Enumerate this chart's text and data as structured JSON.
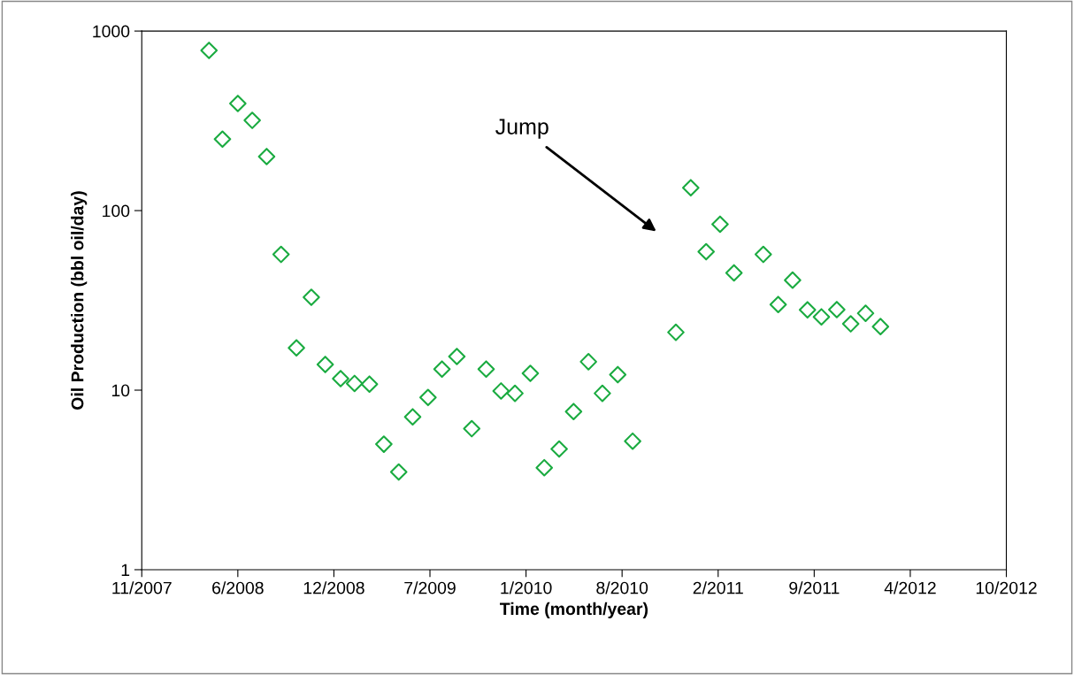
{
  "chart_data": {
    "type": "scatter",
    "xlabel": "Time (month/year)",
    "ylabel": "Oil Production (bbl oil/day)",
    "x": [
      "2008-04-03",
      "2008-05-01",
      "2008-06-02",
      "2008-07-02",
      "2008-08-01",
      "2008-08-31",
      "2008-10-02",
      "2008-11-02",
      "2008-12-01",
      "2009-01-02",
      "2009-01-31",
      "2009-03-03",
      "2009-04-02",
      "2009-05-03",
      "2009-06-01",
      "2009-07-03",
      "2009-08-01",
      "2009-09-01",
      "2009-10-02",
      "2009-11-01",
      "2009-12-02",
      "2009-12-31",
      "2010-02-01",
      "2010-03-02",
      "2010-04-02",
      "2010-05-02",
      "2010-06-02",
      "2010-07-01",
      "2010-08-02",
      "2010-09-02",
      "2010-12-01",
      "2011-01-01",
      "2011-02-02",
      "2011-03-03",
      "2011-04-01",
      "2011-06-01",
      "2011-07-02",
      "2011-08-01",
      "2011-09-01",
      "2011-09-30",
      "2011-11-01",
      "2011-11-30",
      "2011-12-31",
      "2012-01-31"
    ],
    "series": [
      {
        "color": "#1aab40",
        "values": [
          780,
          250,
          395,
          318,
          200,
          57,
          17.2,
          32.9,
          13.9,
          11.6,
          10.9,
          10.8,
          5.0,
          3.5,
          7.1,
          9.1,
          13.1,
          15.4,
          6.1,
          13.1,
          9.9,
          9.6,
          12.4,
          3.7,
          4.7,
          7.6,
          14.4,
          9.6,
          12.2,
          5.2,
          21,
          134,
          59,
          84,
          45,
          57,
          30,
          41,
          28,
          25.6,
          28.1,
          23.4,
          26.8,
          22.6
        ]
      }
    ],
    "log": "y",
    "marker": "diamond",
    "grid": false,
    "legend": false,
    "xlim": [
      "2007-11-15",
      "2012-10-19"
    ],
    "xticks": [
      {
        "value": "2007-11-15",
        "label": "11/2007"
      },
      {
        "value": "2008-06-02",
        "label": "6/2008"
      },
      {
        "value": "2008-12-19",
        "label": "12/2008"
      },
      {
        "value": "2009-07-07",
        "label": "7/2009"
      },
      {
        "value": "2010-01-23",
        "label": "1/2010"
      },
      {
        "value": "2010-08-11",
        "label": "8/2010"
      },
      {
        "value": "2011-02-27",
        "label": "2/2011"
      },
      {
        "value": "2011-09-15",
        "label": "9/2011"
      },
      {
        "value": "2012-04-02",
        "label": "4/2012"
      },
      {
        "value": "2012-10-19",
        "label": "10/2012"
      }
    ],
    "ylim": [
      1,
      1000
    ],
    "yticks": [
      1,
      10,
      100,
      1000
    ],
    "annotations": [
      "Jump"
    ]
  }
}
